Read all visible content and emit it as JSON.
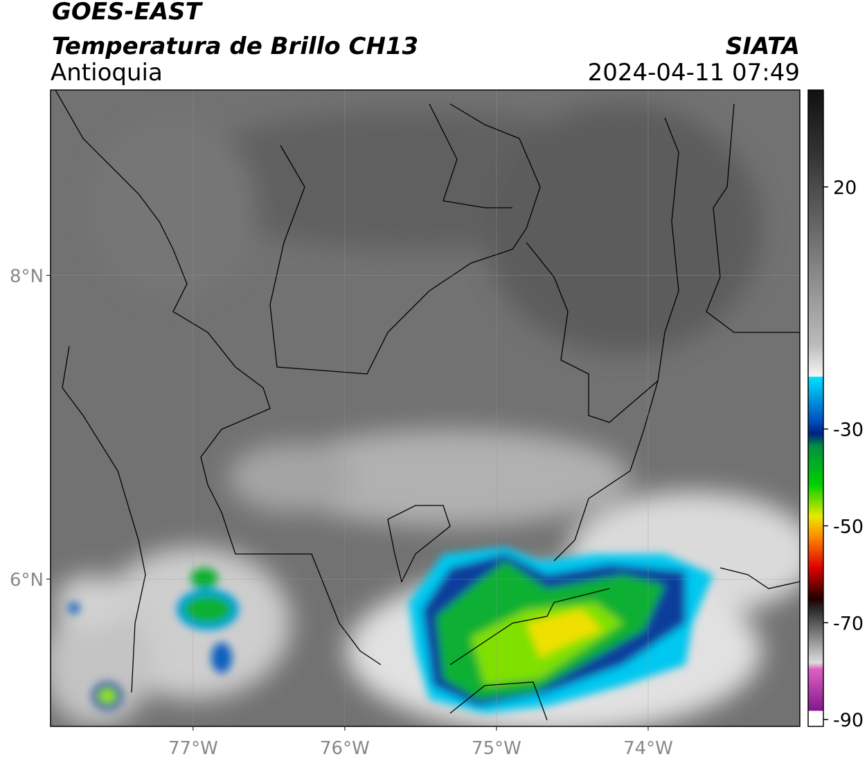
{
  "header": {
    "title": "GOES-EAST",
    "subtitle": "Temperatura de Brillo CH13",
    "region": "Antioquia",
    "source": "SIATA",
    "datetime": "2024-04-11 07:49"
  },
  "map": {
    "lonlim": [
      -77.94,
      -73.0
    ],
    "latlim": [
      5.03,
      9.22
    ],
    "lonticks": [
      {
        "value": -77,
        "label": "77°W"
      },
      {
        "value": -76,
        "label": "76°W"
      },
      {
        "value": -75,
        "label": "75°W"
      },
      {
        "value": -74,
        "label": "74°W"
      }
    ],
    "latticks": [
      {
        "value": 8,
        "label": "8°N"
      },
      {
        "value": 6,
        "label": "6°N"
      }
    ],
    "grid": true
  },
  "colorbar": {
    "lim": [
      -91.4,
      40
    ],
    "ticks": [
      20,
      -30,
      -50,
      -70,
      -90
    ]
  }
}
